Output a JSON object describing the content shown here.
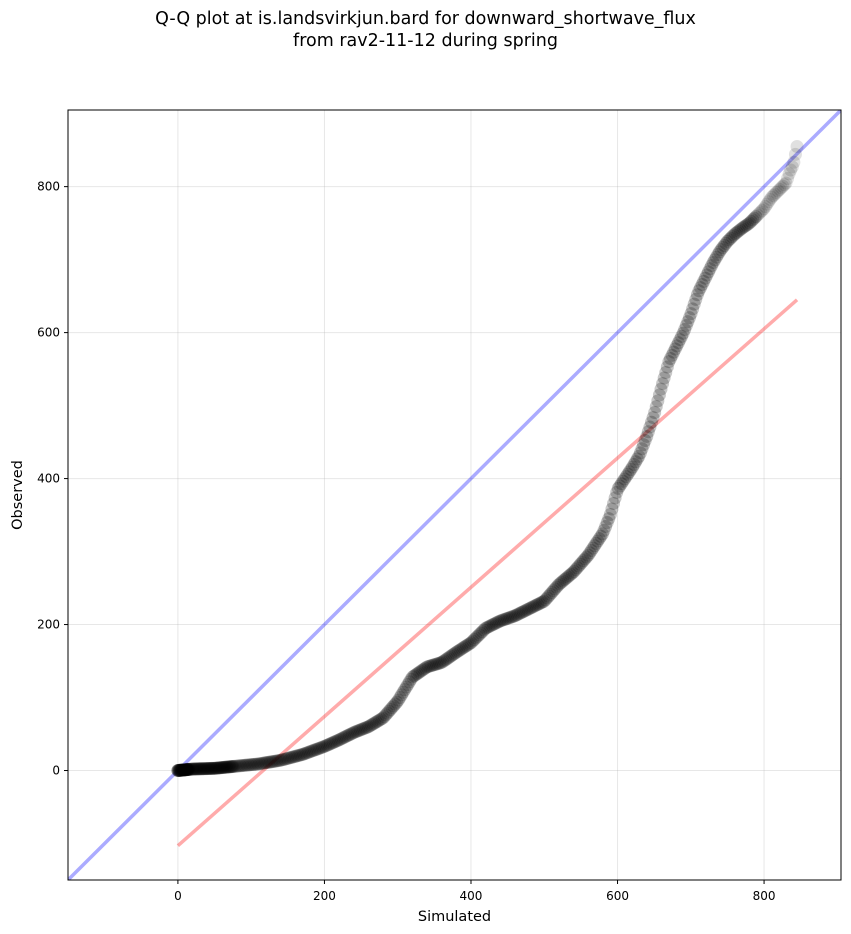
{
  "chart_data": {
    "type": "scatter",
    "title": "Q-Q plot at is.landsvirkjun.bard for downward_shortwave_flux",
    "subtitle": "from rav2-11-12 during spring",
    "xlabel": "Simulated",
    "ylabel": "Observed",
    "xlim": [
      -150,
      905
    ],
    "ylim": [
      -150,
      905
    ],
    "xticks": [
      0,
      200,
      400,
      600,
      800
    ],
    "yticks": [
      0,
      200,
      400,
      600,
      800
    ],
    "grid": true,
    "reference_lines": [
      {
        "name": "1:1 line",
        "color": "#0000ff",
        "alpha": 0.33,
        "points": [
          [
            -150,
            -150
          ],
          [
            905,
            905
          ]
        ]
      },
      {
        "name": "fit line",
        "color": "#ff0000",
        "alpha": 0.33,
        "points": [
          [
            0,
            -103
          ],
          [
            845,
            645
          ]
        ]
      }
    ],
    "series": [
      {
        "name": "quantiles",
        "color": "#000000",
        "anchor_points": [
          [
            0,
            0
          ],
          [
            20,
            2
          ],
          [
            50,
            3
          ],
          [
            80,
            6
          ],
          [
            110,
            9
          ],
          [
            140,
            14
          ],
          [
            170,
            22
          ],
          [
            200,
            33
          ],
          [
            220,
            42
          ],
          [
            240,
            52
          ],
          [
            260,
            60
          ],
          [
            280,
            72
          ],
          [
            300,
            95
          ],
          [
            320,
            128
          ],
          [
            340,
            142
          ],
          [
            360,
            148
          ],
          [
            380,
            162
          ],
          [
            400,
            175
          ],
          [
            420,
            195
          ],
          [
            440,
            205
          ],
          [
            460,
            212
          ],
          [
            480,
            222
          ],
          [
            500,
            232
          ],
          [
            520,
            255
          ],
          [
            540,
            272
          ],
          [
            560,
            295
          ],
          [
            580,
            325
          ],
          [
            590,
            350
          ],
          [
            600,
            385
          ],
          [
            610,
            400
          ],
          [
            620,
            415
          ],
          [
            630,
            432
          ],
          [
            640,
            458
          ],
          [
            650,
            488
          ],
          [
            660,
            525
          ],
          [
            670,
            560
          ],
          [
            680,
            580
          ],
          [
            690,
            600
          ],
          [
            700,
            625
          ],
          [
            710,
            655
          ],
          [
            720,
            675
          ],
          [
            730,
            695
          ],
          [
            740,
            712
          ],
          [
            750,
            725
          ],
          [
            760,
            735
          ],
          [
            770,
            743
          ],
          [
            780,
            750
          ],
          [
            790,
            760
          ],
          [
            800,
            770
          ],
          [
            810,
            785
          ],
          [
            820,
            795
          ],
          [
            830,
            805
          ],
          [
            835,
            820
          ],
          [
            840,
            830
          ],
          [
            845,
            855
          ]
        ],
        "point_count": 420,
        "x_min": 0,
        "x_max": 845
      }
    ]
  }
}
